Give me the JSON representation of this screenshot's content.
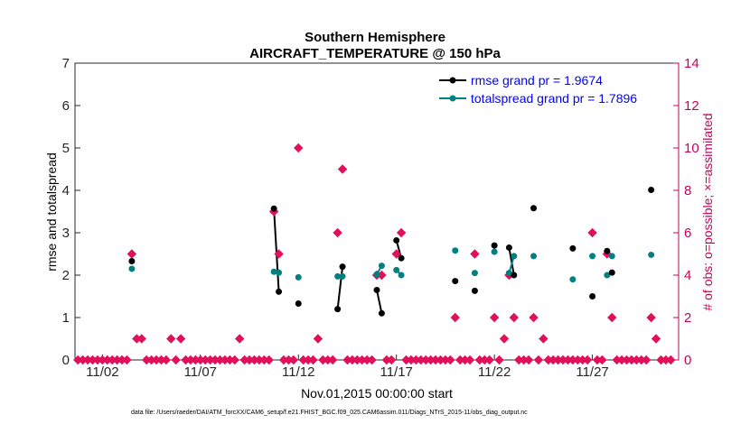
{
  "chart_data": {
    "type": "scatter",
    "title": "Southern Hemisphere",
    "subtitle": "AIRCRAFT_TEMPERATURE @ 150 hPa",
    "xlabel": "Nov.01,2015 00:00:00 start",
    "ylabel_left": "rmse and totalspread",
    "ylabel_right": "# of obs: o=possible; ×=assimilated",
    "footnote": "data file: /Users/raeder/DAI/ATM_forcXX/CAM6_setup/f.e21.FHIST_BGC.f09_025.CAM6assim.011/Diags_NTrS_2015-11/obs_diag_output.nc",
    "x_tick_labels": [
      "11/02",
      "11/07",
      "11/12",
      "11/17",
      "11/22",
      "11/27"
    ],
    "x_tick_days": [
      2,
      7,
      12,
      17,
      22,
      27
    ],
    "xlim_days": [
      0.6,
      31.4
    ],
    "ylim_left": [
      0,
      7
    ],
    "ylim_right": [
      0,
      14
    ],
    "yticks_left": [
      "0",
      "1",
      "2",
      "3",
      "4",
      "5",
      "6",
      "7"
    ],
    "yticks_right": [
      "0",
      "2",
      "4",
      "6",
      "8",
      "10",
      "12",
      "14"
    ],
    "colors": {
      "rmse": "#000000",
      "spread": "#008080",
      "obs": "#e0105a",
      "right_axis": "#c8005a"
    },
    "series": [
      {
        "name": "rmse grand pr = 1.9674",
        "axis": "left",
        "points": [
          [
            3.5,
            2.33
          ],
          [
            10.75,
            3.57
          ],
          [
            11.0,
            1.61
          ],
          [
            12.0,
            1.33
          ],
          [
            14.0,
            1.2
          ],
          [
            14.25,
            2.2
          ],
          [
            16.0,
            1.65
          ],
          [
            16.25,
            1.1
          ],
          [
            17.0,
            2.82
          ],
          [
            17.25,
            2.4
          ],
          [
            20.0,
            1.86
          ],
          [
            21.0,
            1.63
          ],
          [
            22.0,
            2.7
          ],
          [
            22.75,
            2.65
          ],
          [
            23.0,
            2.0
          ],
          [
            24.0,
            3.58
          ],
          [
            26.0,
            2.63
          ],
          [
            27.0,
            1.5
          ],
          [
            27.75,
            2.57
          ],
          [
            28.0,
            2.06
          ],
          [
            30.0,
            4.01
          ]
        ],
        "segments": [
          [
            [
              10.75,
              3.57
            ],
            [
              11.0,
              1.61
            ]
          ],
          [
            [
              14.0,
              1.2
            ],
            [
              14.25,
              2.2
            ]
          ],
          [
            [
              16.0,
              1.65
            ],
            [
              16.25,
              1.1
            ]
          ],
          [
            [
              17.0,
              2.82
            ],
            [
              17.25,
              2.4
            ]
          ],
          [
            [
              22.75,
              2.65
            ],
            [
              23.0,
              2.0
            ]
          ]
        ]
      },
      {
        "name": "totalspread grand pr = 1.7896",
        "axis": "left",
        "points": [
          [
            3.5,
            2.15
          ],
          [
            10.75,
            2.08
          ],
          [
            11.0,
            2.06
          ],
          [
            12.0,
            1.95
          ],
          [
            14.0,
            1.97
          ],
          [
            14.25,
            1.97
          ],
          [
            16.0,
            2.02
          ],
          [
            16.25,
            2.22
          ],
          [
            17.0,
            2.12
          ],
          [
            17.25,
            2.0
          ],
          [
            20.0,
            2.58
          ],
          [
            21.0,
            2.05
          ],
          [
            22.0,
            2.55
          ],
          [
            22.75,
            2.05
          ],
          [
            23.0,
            2.45
          ],
          [
            24.0,
            2.45
          ],
          [
            26.0,
            1.9
          ],
          [
            27.0,
            2.45
          ],
          [
            27.75,
            2.0
          ],
          [
            28.0,
            2.45
          ],
          [
            30.0,
            2.48
          ]
        ],
        "segments": [
          [
            [
              10.75,
              2.08
            ],
            [
              11.0,
              2.06
            ]
          ],
          [
            [
              14.0,
              1.97
            ],
            [
              14.25,
              1.97
            ]
          ],
          [
            [
              16.0,
              2.02
            ],
            [
              16.25,
              2.22
            ]
          ],
          [
            [
              17.0,
              2.12
            ],
            [
              17.25,
              2.0
            ]
          ],
          [
            [
              22.75,
              2.05
            ],
            [
              23.0,
              2.45
            ]
          ]
        ]
      },
      {
        "name": "# of obs assimilated",
        "axis": "right",
        "points": [
          [
            0.75,
            0
          ],
          [
            1.0,
            0
          ],
          [
            1.25,
            0
          ],
          [
            1.5,
            0
          ],
          [
            1.75,
            0
          ],
          [
            2.0,
            0
          ],
          [
            2.25,
            0
          ],
          [
            2.5,
            0
          ],
          [
            2.75,
            0
          ],
          [
            3.0,
            0
          ],
          [
            3.25,
            0
          ],
          [
            3.5,
            5
          ],
          [
            3.75,
            1
          ],
          [
            4.0,
            1
          ],
          [
            4.25,
            0
          ],
          [
            4.5,
            0
          ],
          [
            4.75,
            0
          ],
          [
            5.0,
            0
          ],
          [
            5.25,
            0
          ],
          [
            5.5,
            1
          ],
          [
            5.75,
            0
          ],
          [
            6.0,
            1
          ],
          [
            6.25,
            0
          ],
          [
            6.5,
            0
          ],
          [
            6.75,
            0
          ],
          [
            7.0,
            0
          ],
          [
            7.25,
            0
          ],
          [
            7.5,
            0
          ],
          [
            7.75,
            0
          ],
          [
            8.0,
            0
          ],
          [
            8.25,
            0
          ],
          [
            8.5,
            0
          ],
          [
            8.75,
            0
          ],
          [
            9.0,
            1
          ],
          [
            9.25,
            0
          ],
          [
            9.5,
            0
          ],
          [
            9.75,
            0
          ],
          [
            10.0,
            0
          ],
          [
            10.25,
            0
          ],
          [
            10.5,
            0
          ],
          [
            10.75,
            7
          ],
          [
            11.0,
            5
          ],
          [
            11.25,
            0
          ],
          [
            11.5,
            0
          ],
          [
            11.75,
            0
          ],
          [
            12.0,
            10
          ],
          [
            12.25,
            0
          ],
          [
            12.5,
            0
          ],
          [
            12.75,
            0
          ],
          [
            13.0,
            1
          ],
          [
            13.25,
            0
          ],
          [
            13.5,
            0
          ],
          [
            13.75,
            0
          ],
          [
            14.0,
            6
          ],
          [
            14.25,
            9
          ],
          [
            14.5,
            0
          ],
          [
            14.75,
            0
          ],
          [
            15.0,
            0
          ],
          [
            15.25,
            0
          ],
          [
            15.5,
            0
          ],
          [
            15.75,
            0
          ],
          [
            16.0,
            4
          ],
          [
            16.25,
            4
          ],
          [
            16.5,
            0
          ],
          [
            16.75,
            0
          ],
          [
            17.0,
            5
          ],
          [
            17.25,
            6
          ],
          [
            17.5,
            0
          ],
          [
            17.75,
            0
          ],
          [
            18.0,
            0
          ],
          [
            18.25,
            0
          ],
          [
            18.5,
            0
          ],
          [
            18.75,
            0
          ],
          [
            19.0,
            0
          ],
          [
            19.25,
            0
          ],
          [
            19.5,
            0
          ],
          [
            19.75,
            0
          ],
          [
            20.0,
            2
          ],
          [
            20.25,
            0
          ],
          [
            20.5,
            0
          ],
          [
            20.75,
            0
          ],
          [
            21.0,
            5
          ],
          [
            21.25,
            0
          ],
          [
            21.5,
            0
          ],
          [
            21.75,
            0
          ],
          [
            22.0,
            2
          ],
          [
            22.25,
            0
          ],
          [
            22.5,
            1
          ],
          [
            22.75,
            4
          ],
          [
            23.0,
            2
          ],
          [
            23.25,
            0
          ],
          [
            23.5,
            0
          ],
          [
            23.75,
            0
          ],
          [
            24.0,
            2
          ],
          [
            24.25,
            0
          ],
          [
            24.5,
            1
          ],
          [
            24.75,
            0
          ],
          [
            25.0,
            0
          ],
          [
            25.25,
            0
          ],
          [
            25.5,
            0
          ],
          [
            25.75,
            0
          ],
          [
            26.0,
            0
          ],
          [
            26.25,
            0
          ],
          [
            26.5,
            0
          ],
          [
            26.75,
            0
          ],
          [
            27.0,
            6
          ],
          [
            27.25,
            0
          ],
          [
            27.5,
            0
          ],
          [
            27.75,
            5
          ],
          [
            28.0,
            2
          ],
          [
            28.25,
            0
          ],
          [
            28.5,
            0
          ],
          [
            28.75,
            0
          ],
          [
            29.0,
            0
          ],
          [
            29.25,
            0
          ],
          [
            29.5,
            0
          ],
          [
            29.75,
            0
          ],
          [
            30.0,
            2
          ],
          [
            30.25,
            1
          ],
          [
            30.5,
            0
          ],
          [
            30.75,
            0
          ],
          [
            31.0,
            0
          ]
        ]
      }
    ],
    "legend_placement": "top-right",
    "grid": false
  }
}
